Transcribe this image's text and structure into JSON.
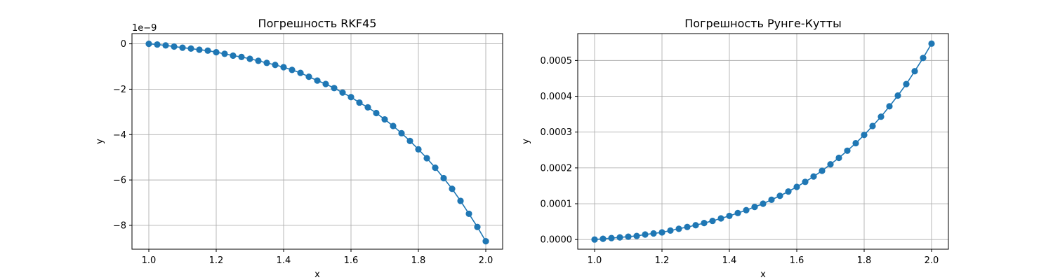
{
  "chart_data": [
    {
      "type": "line",
      "title": "Погрешность RKF45",
      "xlabel": "x",
      "ylabel": "y",
      "y_offset_label": "1e−9",
      "xlim": [
        0.95,
        2.05
      ],
      "ylim": [
        -9.05,
        0.45
      ],
      "xticks": [
        1.0,
        1.2,
        1.4,
        1.6,
        1.8,
        2.0
      ],
      "xtick_labels": [
        "1.0",
        "1.2",
        "1.4",
        "1.6",
        "1.8",
        "2.0"
      ],
      "yticks": [
        0,
        -2,
        -4,
        -6,
        -8
      ],
      "ytick_labels": [
        "0",
        "−2",
        "−4",
        "−6",
        "−8"
      ],
      "grid": true,
      "color": "#1f77b4",
      "x": [
        1.0,
        1.025,
        1.05,
        1.075,
        1.1,
        1.125,
        1.15,
        1.175,
        1.2,
        1.225,
        1.25,
        1.275,
        1.3,
        1.325,
        1.35,
        1.375,
        1.4,
        1.425,
        1.45,
        1.475,
        1.5,
        1.525,
        1.55,
        1.575,
        1.6,
        1.625,
        1.65,
        1.675,
        1.7,
        1.725,
        1.75,
        1.775,
        1.8,
        1.825,
        1.85,
        1.875,
        1.9,
        1.925,
        1.95,
        1.975,
        2.0
      ],
      "y": [
        0.0,
        -0.03,
        -0.07,
        -0.12,
        -0.17,
        -0.21,
        -0.26,
        -0.3,
        -0.37,
        -0.44,
        -0.52,
        -0.58,
        -0.66,
        -0.75,
        -0.84,
        -0.93,
        -1.03,
        -1.15,
        -1.28,
        -1.45,
        -1.62,
        -1.77,
        -1.95,
        -2.15,
        -2.35,
        -2.59,
        -2.8,
        -3.05,
        -3.33,
        -3.62,
        -3.94,
        -4.28,
        -4.65,
        -5.04,
        -5.46,
        -5.92,
        -6.39,
        -6.92,
        -7.49,
        -8.07,
        -8.7
      ]
    },
    {
      "type": "line",
      "title": "Погрешность Рунге-Кутты",
      "xlabel": "x",
      "ylabel": "y",
      "xlim": [
        0.95,
        2.05
      ],
      "ylim": [
        -2.7e-05,
        0.000575
      ],
      "xticks": [
        1.0,
        1.2,
        1.4,
        1.6,
        1.8,
        2.0
      ],
      "xtick_labels": [
        "1.0",
        "1.2",
        "1.4",
        "1.6",
        "1.8",
        "2.0"
      ],
      "yticks": [
        0,
        0.0001,
        0.0002,
        0.0003,
        0.0004,
        0.0005
      ],
      "ytick_labels": [
        "0.0000",
        "0.0001",
        "0.0002",
        "0.0003",
        "0.0004",
        "0.0005"
      ],
      "grid": true,
      "color": "#1f77b4",
      "x": [
        1.0,
        1.025,
        1.05,
        1.075,
        1.1,
        1.125,
        1.15,
        1.175,
        1.2,
        1.225,
        1.25,
        1.275,
        1.3,
        1.325,
        1.35,
        1.375,
        1.4,
        1.425,
        1.45,
        1.475,
        1.5,
        1.525,
        1.55,
        1.575,
        1.6,
        1.625,
        1.65,
        1.675,
        1.7,
        1.725,
        1.75,
        1.775,
        1.8,
        1.825,
        1.85,
        1.875,
        1.9,
        1.925,
        1.95,
        1.975,
        2.0
      ],
      "y": [
        0.0,
        2e-06,
        4e-06,
        6e-06,
        8e-06,
        1e-05,
        1.4e-05,
        1.7e-05,
        2e-05,
        2.5e-05,
        3e-05,
        3.5e-05,
        4e-05,
        4.6e-05,
        5.2e-05,
        5.9e-05,
        6.6e-05,
        7.4e-05,
        8.2e-05,
        9.1e-05,
        0.0001,
        0.000111,
        0.000122,
        0.000134,
        0.000147,
        0.000161,
        0.000176,
        0.000192,
        0.00021,
        0.000228,
        0.000248,
        0.000269,
        0.000292,
        0.000317,
        0.000343,
        0.000372,
        0.000402,
        0.000434,
        0.00047,
        0.000507,
        0.000547
      ]
    }
  ]
}
